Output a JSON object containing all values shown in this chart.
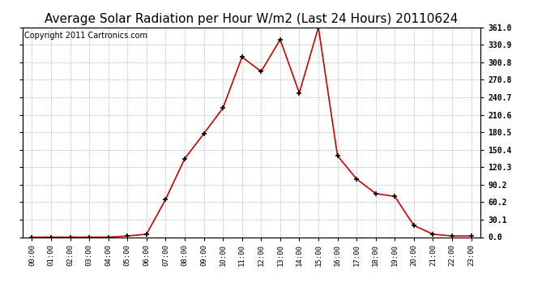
{
  "title": "Average Solar Radiation per Hour W/m2 (Last 24 Hours) 20110624",
  "copyright_text": "Copyright 2011 Cartronics.com",
  "x_labels": [
    "00:00",
    "01:00",
    "02:00",
    "03:00",
    "04:00",
    "05:00",
    "06:00",
    "07:00",
    "08:00",
    "09:00",
    "10:00",
    "11:00",
    "12:00",
    "13:00",
    "14:00",
    "15:00",
    "16:00",
    "17:00",
    "18:00",
    "19:00",
    "20:00",
    "21:00",
    "22:00",
    "23:00"
  ],
  "y_values": [
    0,
    0,
    0,
    0,
    0,
    2,
    5,
    65,
    135,
    178,
    222,
    310,
    285,
    340,
    248,
    361,
    140,
    100,
    75,
    70,
    20,
    5,
    2,
    2
  ],
  "line_color": "#cc0000",
  "marker": "+",
  "marker_color": "#000000",
  "bg_color": "#ffffff",
  "grid_color": "#bbbbbb",
  "yticks": [
    0.0,
    30.1,
    60.2,
    90.2,
    120.3,
    150.4,
    180.5,
    210.6,
    240.7,
    270.8,
    300.8,
    330.9,
    361.0
  ],
  "ymax": 361.0,
  "ymin": 0.0,
  "title_fontsize": 11,
  "copyright_fontsize": 7
}
